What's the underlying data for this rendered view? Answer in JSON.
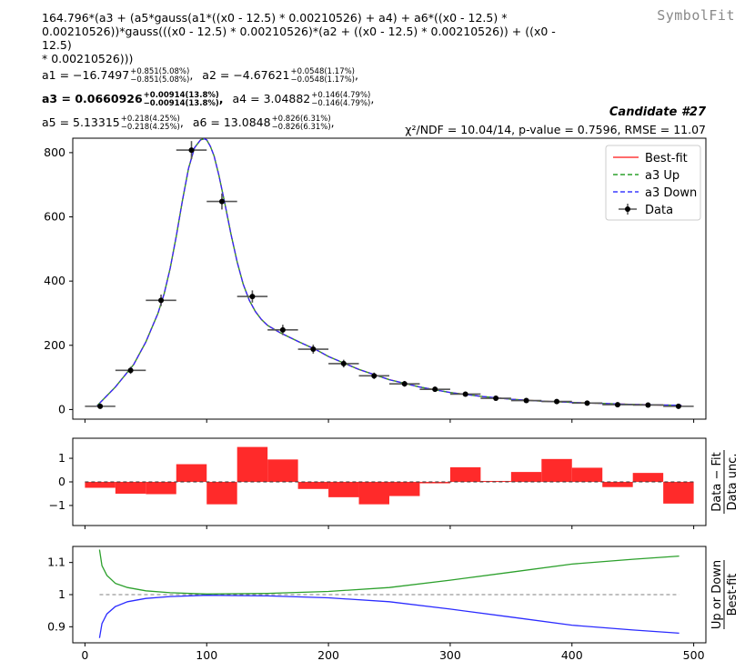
{
  "header": {
    "formula": "164.796*(a3 + (a5*gauss(a1*((x0 - 12.5) * 0.00210526) + a4) + a6*((x0 - 12.5) *\n0.00210526))*gauss(((x0 - 12.5) * 0.00210526)*(a2 + ((x0 - 12.5) * 0.00210526)) + ((x0 - 12.5)\n* 0.00210526)))",
    "brand": "SymbolFit",
    "candidate": "Candidate #27",
    "stats": "χ²/NDF = 10.04/14, p-value = 0.7596, RMSE = 11.07"
  },
  "params": [
    [
      {
        "name": "a1",
        "value": "−16.7497",
        "up": "+0.851(5.08%)",
        "down": "−0.851(5.08%)",
        "bold": false
      },
      {
        "name": "a2",
        "value": "−4.67621",
        "up": "+0.0548(1.17%)",
        "down": "−0.0548(1.17%)",
        "bold": false
      }
    ],
    [
      {
        "name": "a3",
        "value": "0.0660926",
        "up": "+0.00914(13.8%)",
        "down": "−0.00914(13.8%)",
        "bold": true
      },
      {
        "name": "a4",
        "value": "3.04882",
        "up": "+0.146(4.79%)",
        "down": "−0.146(4.79%)",
        "bold": false
      }
    ],
    [
      {
        "name": "a5",
        "value": "5.13315",
        "up": "+0.218(4.25%)",
        "down": "−0.218(4.25%)",
        "bold": false
      },
      {
        "name": "a6",
        "value": "13.0848",
        "up": "+0.826(6.31%)",
        "down": "−0.826(6.31%)",
        "bold": false
      }
    ]
  ],
  "legend": {
    "position": "top-right",
    "entries": [
      {
        "label": "Best-fit",
        "color": "#ff3b3b",
        "style": "solid"
      },
      {
        "label": "a3 Up",
        "color": "#2ca02c",
        "style": "dashed"
      },
      {
        "label": "a3 Down",
        "color": "#3b3bff",
        "style": "dashed"
      },
      {
        "label": "Data",
        "color": "#000000",
        "style": "errorbar"
      }
    ]
  },
  "colors": {
    "bestfit": "#ff3b3b",
    "up": "#2ca02c",
    "down": "#2b2bff",
    "data": "#000000",
    "residual_bar": "#ff2a2a",
    "reference_line": "#808080"
  },
  "chart_data": [
    {
      "type": "line",
      "panel": "main",
      "xlim": [
        -10,
        510
      ],
      "ylim": [
        -30,
        845
      ],
      "xticks": [
        0,
        100,
        200,
        300,
        400,
        500
      ],
      "yticks": [
        0,
        200,
        400,
        600,
        800
      ],
      "xlabel": "",
      "ylabel": "",
      "grid": false,
      "data": {
        "x": [
          12.5,
          37.5,
          62.5,
          87.5,
          112.5,
          137.5,
          162.5,
          187.5,
          212.5,
          237.5,
          262.5,
          287.5,
          312.5,
          337.5,
          362.5,
          387.5,
          412.5,
          437.5,
          462.5,
          487.5
        ],
        "y": [
          10,
          122,
          340,
          808,
          648,
          352,
          248,
          188,
          143,
          105,
          80,
          63,
          48,
          35,
          28,
          25,
          20,
          15,
          14,
          10
        ],
        "yerr": [
          3,
          11,
          18,
          28,
          25,
          19,
          16,
          14,
          12,
          10,
          9,
          8,
          7,
          6,
          5,
          5,
          4,
          4,
          4,
          3
        ],
        "xerr": 12.5
      },
      "curve": {
        "x": [
          10,
          25,
          40,
          50,
          60,
          65,
          70,
          75,
          80,
          85,
          90,
          95,
          98,
          100,
          103,
          106,
          110,
          115,
          120,
          125,
          130,
          135,
          140,
          145,
          150,
          160,
          175,
          190,
          200,
          225,
          250,
          275,
          300,
          325,
          350,
          375,
          400,
          425,
          450,
          475,
          490
        ],
        "y": [
          12,
          70,
          140,
          210,
          300,
          360,
          440,
          540,
          650,
          750,
          815,
          840,
          843,
          840,
          820,
          790,
          730,
          640,
          545,
          460,
          390,
          340,
          305,
          280,
          262,
          240,
          212,
          186,
          165,
          125,
          93,
          70,
          53,
          41,
          32,
          26,
          22,
          19,
          16,
          14,
          13
        ]
      }
    },
    {
      "type": "bar",
      "panel": "residual",
      "ylabel": "Data − Fit / Data unc.",
      "xlim": [
        -10,
        510
      ],
      "ylim": [
        -1.85,
        1.85
      ],
      "yticks": [
        -1,
        0,
        1
      ],
      "bin_edges": [
        0,
        25,
        50,
        75,
        100,
        125,
        150,
        175,
        200,
        225,
        250,
        275,
        300,
        325,
        350,
        375,
        400,
        425,
        450,
        475,
        500
      ],
      "values": [
        -0.25,
        -0.5,
        -0.52,
        0.75,
        -0.95,
        1.48,
        0.95,
        -0.3,
        -0.65,
        -0.95,
        -0.6,
        -0.06,
        0.62,
        0.04,
        0.42,
        0.97,
        0.6,
        -0.22,
        0.38,
        -0.92
      ]
    },
    {
      "type": "line",
      "panel": "ratio",
      "ylabel": "Up or Down / Best-fit",
      "xlim": [
        -10,
        510
      ],
      "ylim": [
        0.85,
        1.15
      ],
      "yticks": [
        0.9,
        1,
        1.1
      ],
      "xticks": [
        0,
        100,
        200,
        300,
        400,
        500
      ],
      "series": [
        {
          "name": "a3 Up",
          "x": [
            12,
            14,
            18,
            25,
            35,
            50,
            70,
            100,
            150,
            200,
            250,
            300,
            350,
            400,
            450,
            488
          ],
          "y": [
            1.14,
            1.09,
            1.06,
            1.035,
            1.022,
            1.012,
            1.006,
            1.002,
            1.004,
            1.01,
            1.022,
            1.045,
            1.07,
            1.095,
            1.11,
            1.12
          ]
        },
        {
          "name": "a3 Down",
          "x": [
            12,
            14,
            18,
            25,
            35,
            50,
            70,
            100,
            150,
            200,
            250,
            300,
            350,
            400,
            450,
            488
          ],
          "y": [
            0.865,
            0.91,
            0.94,
            0.963,
            0.978,
            0.988,
            0.994,
            0.998,
            0.996,
            0.99,
            0.978,
            0.955,
            0.93,
            0.905,
            0.89,
            0.88
          ]
        }
      ]
    }
  ]
}
